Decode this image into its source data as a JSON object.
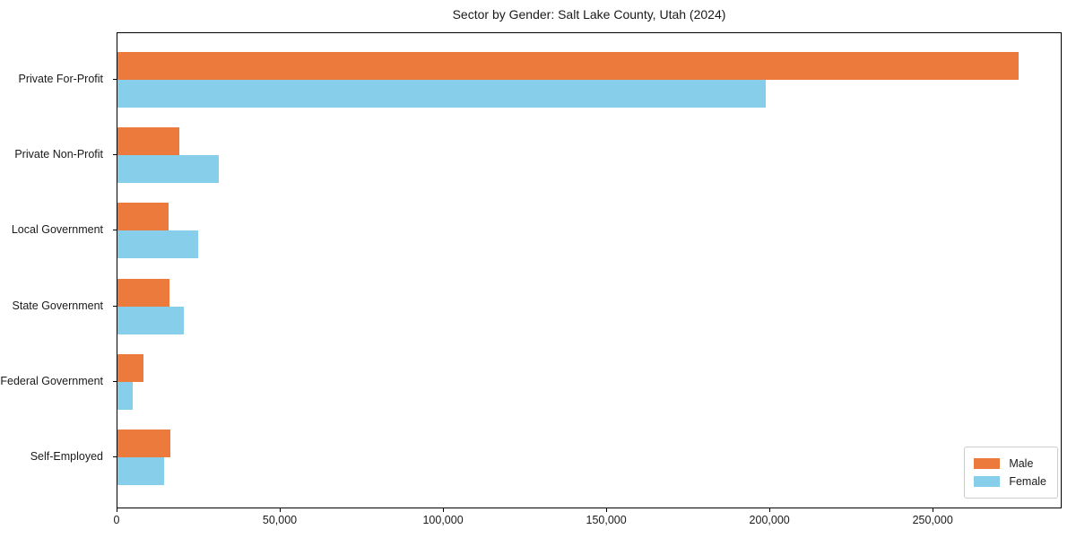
{
  "figure": {
    "title": "Sector by Gender: Salt Lake County, Utah (2024)",
    "background_color": "#ffffff",
    "plot_border_color": "#000000"
  },
  "chart_data": {
    "type": "bar",
    "orientation": "horizontal",
    "title": "Sector by Gender: Salt Lake County, Utah (2024)",
    "categories": [
      "Private For-Profit",
      "Private Non-Profit",
      "Local Government",
      "State Government",
      "Federal Government",
      "Self-Employed"
    ],
    "series": [
      {
        "name": "Male",
        "color": "#EC7A3D",
        "values": [
          276000,
          19000,
          15700,
          15900,
          8000,
          16200
        ]
      },
      {
        "name": "Female",
        "color": "#87CEEB",
        "values": [
          198500,
          31000,
          24700,
          20300,
          4700,
          14300
        ]
      }
    ],
    "xlabel": "",
    "ylabel": "",
    "xlim": [
      0,
      289500
    ],
    "x_ticks": [
      0,
      50000,
      100000,
      150000,
      200000,
      250000
    ],
    "x_tick_labels": [
      "0",
      "50,000",
      "100,000",
      "150,000",
      "200,000",
      "250,000"
    ],
    "grid": false,
    "legend": {
      "position": "lower right",
      "entries": [
        "Male",
        "Female"
      ]
    }
  }
}
